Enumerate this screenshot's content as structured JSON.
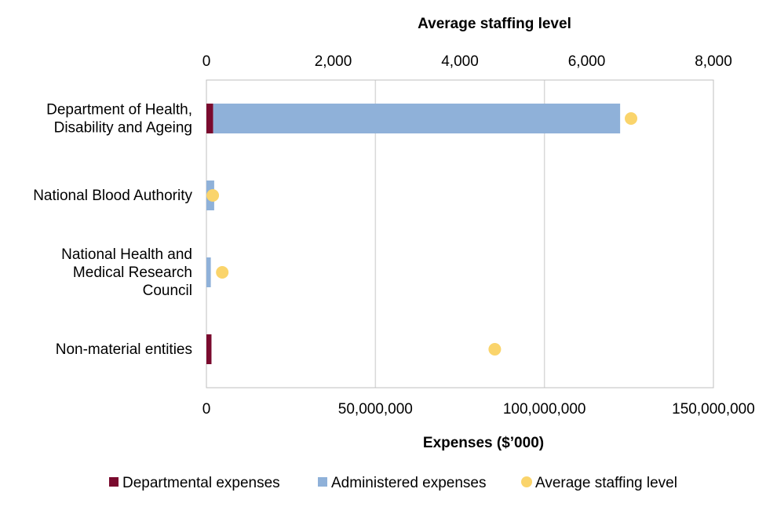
{
  "chart_data": {
    "type": "bar",
    "orientation": "horizontal",
    "stacked": true,
    "top_axis_title": "Average staffing level",
    "bottom_axis_title": "Expenses ($’000)",
    "categories": [
      [
        "Department of Health,",
        "Disability and Ageing"
      ],
      [
        "National Blood Authority"
      ],
      [
        "National Health and",
        "Medical Research",
        "Council"
      ],
      [
        "Non-material entities"
      ]
    ],
    "expenses_axis": {
      "min": 0,
      "max": 150000000,
      "ticks": [
        0,
        50000000,
        100000000,
        150000000
      ],
      "tick_labels": [
        "0",
        "50,000,000",
        "100,000,000",
        "150,000,000"
      ]
    },
    "staffing_axis": {
      "min": 0,
      "max": 8000,
      "ticks": [
        0,
        2000,
        4000,
        6000,
        8000
      ],
      "tick_labels": [
        "0",
        "2,000",
        "4,000",
        "6,000",
        "8,000"
      ]
    },
    "series": [
      {
        "name": "Departmental expenses",
        "axis": "expenses",
        "kind": "bar",
        "color": "#7a0a2e",
        "values": [
          2000000,
          0,
          0,
          1500000
        ]
      },
      {
        "name": "Administered expenses",
        "axis": "expenses",
        "kind": "bar",
        "color": "#8fb1d9",
        "values": [
          120400000,
          2300000,
          1300000,
          0
        ]
      },
      {
        "name": "Average staffing level",
        "axis": "staffing",
        "kind": "point",
        "color": "#fad46b",
        "values": [
          6700,
          100,
          250,
          4550
        ]
      }
    ],
    "grid": true,
    "legend_position": "bottom"
  }
}
